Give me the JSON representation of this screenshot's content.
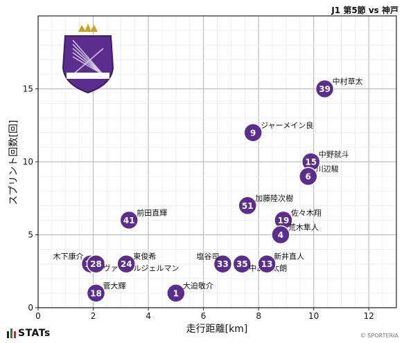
{
  "header": {
    "title": "J1 第5節 vs 神戸"
  },
  "footer": {
    "brand": "STATs",
    "copyright": "© SPORTERIA"
  },
  "logo": {
    "text": "SANFRECCE HIROSHIMA",
    "primary_color": "#5b2d8e"
  },
  "colors": {
    "marker": "#5b2d8e",
    "marker_text": "#ffffff",
    "grid": "#d3d3d3"
  },
  "chart_data": {
    "type": "scatter",
    "xlabel": "走行距離[km]",
    "ylabel": "スプリント回数[回]",
    "xlim": [
      0,
      13
    ],
    "ylim": [
      0,
      20
    ],
    "xticks": [
      0,
      2,
      4,
      6,
      8,
      10,
      12
    ],
    "yticks": [
      0,
      5,
      10,
      15
    ],
    "grid": true,
    "points": [
      {
        "number": "39",
        "name": "中村草太",
        "x": 10.4,
        "y": 15
      },
      {
        "number": "9",
        "name": "ジャーメイン良",
        "x": 7.8,
        "y": 12
      },
      {
        "number": "15",
        "name": "中野就斗",
        "x": 9.9,
        "y": 10
      },
      {
        "number": "6",
        "name": "川辺駿",
        "x": 9.8,
        "y": 9
      },
      {
        "number": "51",
        "name": "加藤陸次樹",
        "x": 7.6,
        "y": 7
      },
      {
        "number": "41",
        "name": "前田直輝",
        "x": 3.3,
        "y": 6
      },
      {
        "number": "19",
        "name": "佐々木翔",
        "x": 8.9,
        "y": 6
      },
      {
        "number": "4",
        "name": "荒木隼人",
        "x": 8.8,
        "y": 5
      },
      {
        "number": "17",
        "name": "木下康介",
        "x": 1.9,
        "y": 3
      },
      {
        "number": "28",
        "name": "ヴァレールジェルマン",
        "x": 2.1,
        "y": 3
      },
      {
        "number": "24",
        "name": "東俊希",
        "x": 3.2,
        "y": 3
      },
      {
        "number": "33",
        "name": "塩谷司",
        "x": 6.7,
        "y": 3
      },
      {
        "number": "35",
        "name": "中島洋太朗",
        "x": 7.4,
        "y": 3
      },
      {
        "number": "13",
        "name": "新井直人",
        "x": 8.3,
        "y": 3
      },
      {
        "number": "18",
        "name": "菅大輝",
        "x": 2.1,
        "y": 1
      },
      {
        "number": "1",
        "name": "大迫敬介",
        "x": 5.0,
        "y": 1
      }
    ]
  }
}
